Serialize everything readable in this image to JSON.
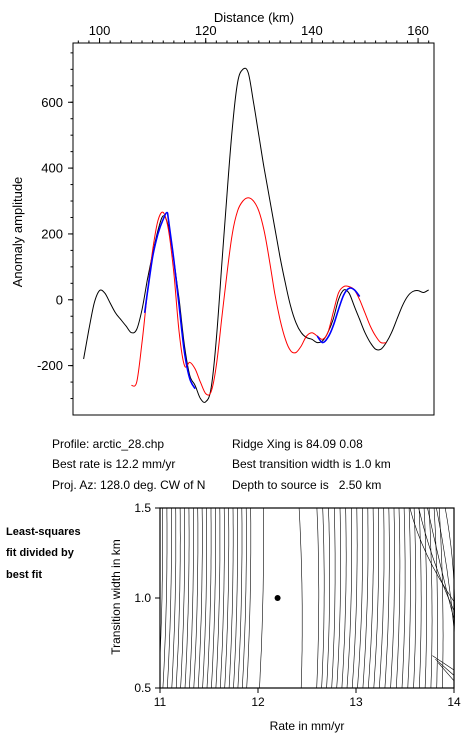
{
  "top_chart": {
    "x_axis_title": "Distance (km)",
    "y_axis_title": "Anomaly amplitude",
    "x_ticks": [
      "100",
      "120",
      "140",
      "160"
    ],
    "y_ticks": [
      "-200",
      "0",
      "200",
      "400",
      "600"
    ]
  },
  "info": {
    "profile": "Profile: arctic_28.chp",
    "best_rate": "Best rate is 12.2 mm/yr",
    "proj_az": "Proj. Az: 128.0 deg. CW of N",
    "ridge_xing": "Ridge Xing is 84.09 0.08",
    "best_width": "Best transition width is 1.0 km",
    "depth": "Depth to source is   2.50 km"
  },
  "side_label": [
    "Least-squares",
    "fit divided by",
    "best fit"
  ],
  "bottom_chart": {
    "x_axis_title": "Rate in mm/yr",
    "y_axis_title": "Transition width in km",
    "x_ticks": [
      "11",
      "12",
      "13",
      "14"
    ],
    "y_ticks": [
      "0.5",
      "1.0",
      "1.5"
    ]
  },
  "chart_data": [
    {
      "type": "line",
      "xlabel": "Distance (km)",
      "ylabel": "Anomaly amplitude",
      "xlim": [
        95,
        163
      ],
      "ylim": [
        -350,
        780
      ],
      "x_axis_position": "top",
      "series": [
        {
          "color": "#000000",
          "x": [
            97,
            98,
            99,
            100,
            101,
            102,
            103,
            104,
            105,
            106,
            107,
            108,
            109,
            110,
            111,
            112,
            113,
            114,
            115,
            116,
            117,
            118,
            119,
            120,
            121,
            122,
            123,
            124,
            125,
            126,
            127,
            128,
            129,
            130,
            131,
            132,
            133,
            134,
            135,
            136,
            137,
            138,
            139,
            140,
            141,
            142,
            143,
            144,
            145,
            146,
            147,
            148,
            149,
            150,
            151,
            152,
            153,
            154,
            155,
            156,
            157,
            158,
            159,
            160,
            161,
            162
          ],
          "y": [
            -180,
            -90,
            -10,
            28,
            20,
            -10,
            -40,
            -60,
            -80,
            -100,
            -90,
            -30,
            60,
            140,
            210,
            255,
            220,
            120,
            0,
            -140,
            -230,
            -260,
            -300,
            -310,
            -270,
            -120,
            100,
            320,
            520,
            660,
            700,
            690,
            600,
            500,
            400,
            310,
            220,
            130,
            50,
            -20,
            -70,
            -100,
            -115,
            -120,
            -130,
            -125,
            -100,
            -60,
            0,
            30,
            20,
            -20,
            -60,
            -100,
            -130,
            -150,
            -150,
            -130,
            -100,
            -60,
            -20,
            10,
            25,
            28,
            22,
            30
          ]
        },
        {
          "color": "#ff0000",
          "x": [
            106,
            107,
            108,
            109,
            110,
            111,
            112,
            113,
            114,
            115,
            116,
            117,
            118,
            119,
            120,
            121,
            122,
            123,
            124,
            125,
            126,
            127,
            128,
            129,
            130,
            131,
            132,
            133,
            134,
            135,
            136,
            137,
            138,
            139,
            140,
            141,
            142,
            143,
            144,
            145,
            146,
            147,
            148,
            149,
            150,
            151,
            152,
            153,
            154
          ],
          "y": [
            -260,
            -250,
            -130,
            20,
            150,
            240,
            265,
            210,
            80,
            -100,
            -200,
            -190,
            -210,
            -250,
            -285,
            -280,
            -200,
            -60,
            80,
            200,
            270,
            300,
            310,
            300,
            270,
            210,
            120,
            20,
            -60,
            -120,
            -155,
            -160,
            -140,
            -110,
            -100,
            -110,
            -120,
            -100,
            -40,
            20,
            40,
            40,
            30,
            0,
            -40,
            -80,
            -110,
            -130,
            -130
          ]
        },
        {
          "color": "#0000ff",
          "x": [
            108.5,
            109,
            110,
            111,
            112,
            112.7,
            113,
            114,
            115,
            116,
            117,
            118
          ],
          "y": [
            -40,
            20,
            130,
            200,
            245,
            265,
            240,
            120,
            -20,
            -160,
            -240,
            -270
          ]
        },
        {
          "color": "#0000ff",
          "x": [
            141,
            142,
            143,
            144,
            145,
            146,
            147,
            148,
            149
          ],
          "y": [
            -110,
            -130,
            -115,
            -80,
            -30,
            15,
            35,
            30,
            10
          ]
        }
      ]
    },
    {
      "type": "contour",
      "xlabel": "Rate in mm/yr",
      "ylabel": "Transition width in km",
      "xlim": [
        11,
        14
      ],
      "ylim": [
        0.5,
        1.5
      ],
      "best_fit_point": {
        "x": 12.2,
        "y": 1.0
      }
    }
  ]
}
